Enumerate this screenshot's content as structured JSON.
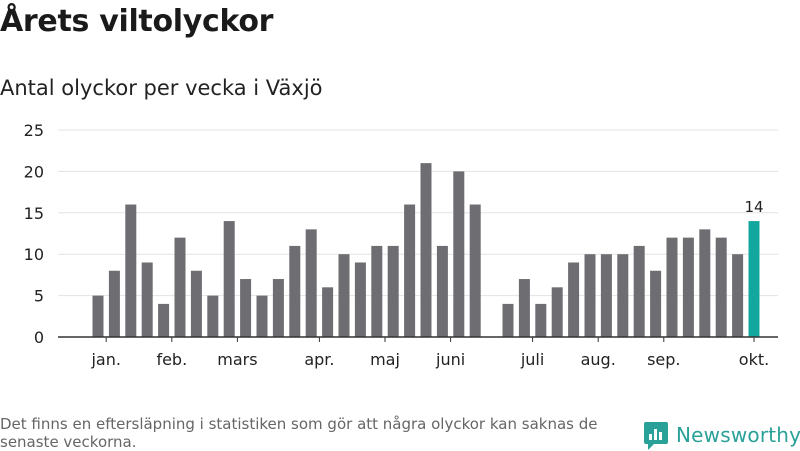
{
  "header": {
    "title": "Årets viltolyckor",
    "subtitle": "Antal olyckor per vecka i Växjö"
  },
  "footer": {
    "note": "Det finns en eftersläpning i statistiken som gör att några olyckor kan saknas de senaste veckorna.",
    "brand": "Newsworthy",
    "brand_icon": "bar-chart-speech-bubble-icon"
  },
  "colors": {
    "bar": "#6e6d72",
    "highlight": "#13a89e",
    "grid": "#e3e3e3",
    "axis": "#333333",
    "brand": "#2aa198"
  },
  "chart_data": {
    "type": "bar",
    "title": "Antal olyckor per vecka i Växjö",
    "xlabel": "",
    "ylabel": "",
    "ylim": [
      0,
      25
    ],
    "yticks": [
      0,
      5,
      10,
      15,
      20,
      25
    ],
    "grid": true,
    "weeks": [
      1,
      2,
      3,
      4,
      5,
      6,
      7,
      8,
      9,
      10,
      11,
      12,
      13,
      14,
      15,
      16,
      17,
      18,
      19,
      20,
      21,
      22,
      23,
      24,
      25,
      26,
      27,
      28,
      29,
      30,
      31,
      32,
      33,
      34,
      35,
      36,
      37,
      38,
      39,
      40,
      41
    ],
    "values": [
      5,
      8,
      16,
      9,
      4,
      12,
      8,
      5,
      14,
      7,
      5,
      7,
      11,
      13,
      6,
      10,
      9,
      11,
      11,
      16,
      21,
      11,
      20,
      16,
      null,
      4,
      7,
      4,
      6,
      9,
      10,
      10,
      10,
      11,
      8,
      12,
      12,
      13,
      12,
      10,
      14
    ],
    "highlight_week": 41,
    "highlight_label": "14",
    "month_labels": [
      {
        "label": "jan.",
        "week": 1.5
      },
      {
        "label": "feb.",
        "week": 5.5
      },
      {
        "label": "mars",
        "week": 9.5
      },
      {
        "label": "apr.",
        "week": 14.5
      },
      {
        "label": "maj",
        "week": 18.5
      },
      {
        "label": "juni",
        "week": 22.5
      },
      {
        "label": "juli",
        "week": 27.5
      },
      {
        "label": "aug.",
        "week": 31.5
      },
      {
        "label": "sep.",
        "week": 35.5
      },
      {
        "label": "okt.",
        "week": 41.0
      }
    ]
  }
}
